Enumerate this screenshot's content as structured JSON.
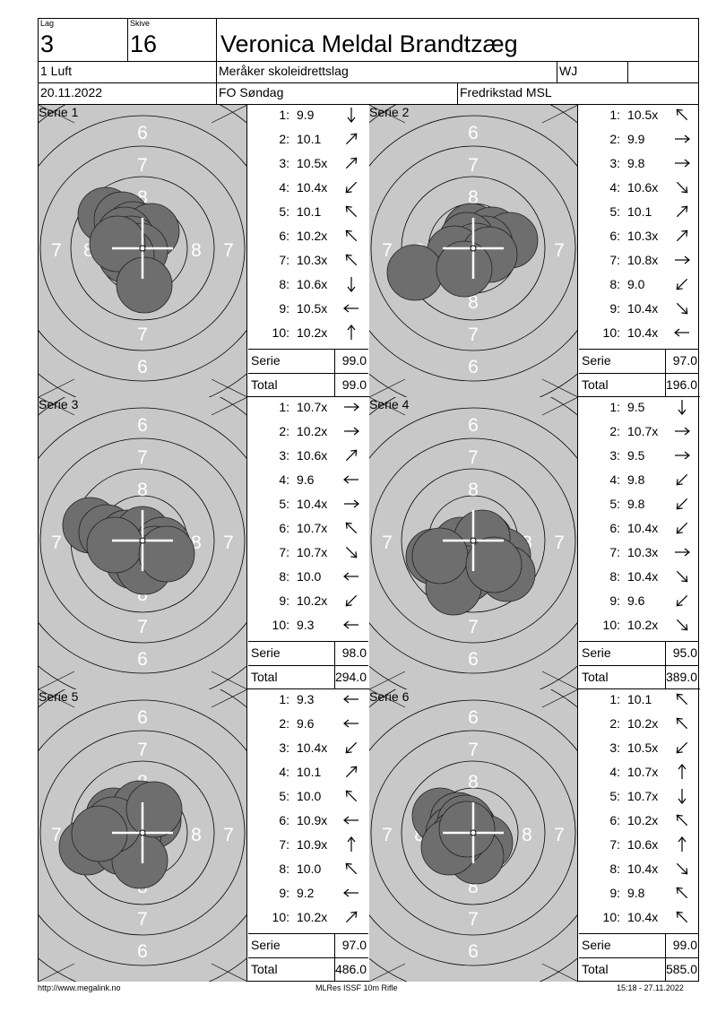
{
  "header": {
    "lag_label": "Lag",
    "lag": "3",
    "skive_label": "Skive",
    "skive": "16",
    "shooter_name": "Veronica Meldal Brandtzæg",
    "class": "1 Luft",
    "club": "Meråker skoleidrettslag",
    "code": "WJ",
    "date": "20.11.2022",
    "event": "FO Søndag",
    "venue": "Fredrikstad MSL"
  },
  "labels": {
    "serie": "Serie",
    "total": "Total"
  },
  "series": [
    {
      "label": "Serie 1",
      "serie_sum": "99.0",
      "total": "99.0",
      "shots": [
        {
          "n": "1:",
          "v": "9.9",
          "arrow": "down"
        },
        {
          "n": "2:",
          "v": "10.1",
          "arrow": "up-right"
        },
        {
          "n": "3:",
          "v": "10.5x",
          "arrow": "up-right"
        },
        {
          "n": "4:",
          "v": "10.4x",
          "arrow": "down-left"
        },
        {
          "n": "5:",
          "v": "10.1",
          "arrow": "up-left"
        },
        {
          "n": "6:",
          "v": "10.2x",
          "arrow": "up-left"
        },
        {
          "n": "7:",
          "v": "10.3x",
          "arrow": "up-left"
        },
        {
          "n": "8:",
          "v": "10.6x",
          "arrow": "down"
        },
        {
          "n": "9:",
          "v": "10.5x",
          "arrow": "left"
        },
        {
          "n": "10:",
          "v": "10.2x",
          "arrow": "up"
        }
      ]
    },
    {
      "label": "Serie 2",
      "serie_sum": "97.0",
      "total": "196.0",
      "shots": [
        {
          "n": "1:",
          "v": "10.5x",
          "arrow": "up-left"
        },
        {
          "n": "2:",
          "v": "9.9",
          "arrow": "right"
        },
        {
          "n": "3:",
          "v": "9.8",
          "arrow": "right"
        },
        {
          "n": "4:",
          "v": "10.6x",
          "arrow": "down-right"
        },
        {
          "n": "5:",
          "v": "10.1",
          "arrow": "up-right"
        },
        {
          "n": "6:",
          "v": "10.3x",
          "arrow": "up-right"
        },
        {
          "n": "7:",
          "v": "10.8x",
          "arrow": "right"
        },
        {
          "n": "8:",
          "v": "9.0",
          "arrow": "down-left"
        },
        {
          "n": "9:",
          "v": "10.4x",
          "arrow": "down-right"
        },
        {
          "n": "10:",
          "v": "10.4x",
          "arrow": "left"
        }
      ]
    },
    {
      "label": "Serie 3",
      "serie_sum": "98.0",
      "total": "294.0",
      "shots": [
        {
          "n": "1:",
          "v": "10.7x",
          "arrow": "right"
        },
        {
          "n": "2:",
          "v": "10.2x",
          "arrow": "right"
        },
        {
          "n": "3:",
          "v": "10.6x",
          "arrow": "up-right"
        },
        {
          "n": "4:",
          "v": "9.6",
          "arrow": "left"
        },
        {
          "n": "5:",
          "v": "10.4x",
          "arrow": "right"
        },
        {
          "n": "6:",
          "v": "10.7x",
          "arrow": "up-left"
        },
        {
          "n": "7:",
          "v": "10.7x",
          "arrow": "down-right"
        },
        {
          "n": "8:",
          "v": "10.0",
          "arrow": "left"
        },
        {
          "n": "9:",
          "v": "10.2x",
          "arrow": "down-left"
        },
        {
          "n": "10:",
          "v": "9.3",
          "arrow": "left"
        }
      ]
    },
    {
      "label": "Serie 4",
      "serie_sum": "95.0",
      "total": "389.0",
      "shots": [
        {
          "n": "1:",
          "v": "9.5",
          "arrow": "down"
        },
        {
          "n": "2:",
          "v": "10.7x",
          "arrow": "right"
        },
        {
          "n": "3:",
          "v": "9.5",
          "arrow": "right"
        },
        {
          "n": "4:",
          "v": "9.8",
          "arrow": "down-left"
        },
        {
          "n": "5:",
          "v": "9.8",
          "arrow": "down-left"
        },
        {
          "n": "6:",
          "v": "10.4x",
          "arrow": "down-left"
        },
        {
          "n": "7:",
          "v": "10.3x",
          "arrow": "right"
        },
        {
          "n": "8:",
          "v": "10.4x",
          "arrow": "down-right"
        },
        {
          "n": "9:",
          "v": "9.6",
          "arrow": "down-left"
        },
        {
          "n": "10:",
          "v": "10.2x",
          "arrow": "down-right"
        }
      ]
    },
    {
      "label": "Serie 5",
      "serie_sum": "97.0",
      "total": "486.0",
      "shots": [
        {
          "n": "1:",
          "v": "9.3",
          "arrow": "left"
        },
        {
          "n": "2:",
          "v": "9.6",
          "arrow": "left"
        },
        {
          "n": "3:",
          "v": "10.4x",
          "arrow": "down-left"
        },
        {
          "n": "4:",
          "v": "10.1",
          "arrow": "up-right"
        },
        {
          "n": "5:",
          "v": "10.0",
          "arrow": "up-left"
        },
        {
          "n": "6:",
          "v": "10.9x",
          "arrow": "left"
        },
        {
          "n": "7:",
          "v": "10.9x",
          "arrow": "up"
        },
        {
          "n": "8:",
          "v": "10.0",
          "arrow": "up-left"
        },
        {
          "n": "9:",
          "v": "9.2",
          "arrow": "left"
        },
        {
          "n": "10:",
          "v": "10.2x",
          "arrow": "up-right"
        }
      ]
    },
    {
      "label": "Serie 6",
      "serie_sum": "99.0",
      "total": "585.0",
      "shots": [
        {
          "n": "1:",
          "v": "10.1",
          "arrow": "up-left"
        },
        {
          "n": "2:",
          "v": "10.2x",
          "arrow": "up-left"
        },
        {
          "n": "3:",
          "v": "10.5x",
          "arrow": "down-left"
        },
        {
          "n": "4:",
          "v": "10.7x",
          "arrow": "up"
        },
        {
          "n": "5:",
          "v": "10.7x",
          "arrow": "down"
        },
        {
          "n": "6:",
          "v": "10.2x",
          "arrow": "up-left"
        },
        {
          "n": "7:",
          "v": "10.6x",
          "arrow": "up"
        },
        {
          "n": "8:",
          "v": "10.4x",
          "arrow": "down-right"
        },
        {
          "n": "9:",
          "v": "9.8",
          "arrow": "up-left"
        },
        {
          "n": "10:",
          "v": "10.4x",
          "arrow": "up-left"
        }
      ]
    }
  ],
  "ring_numbers": [
    "6",
    "7",
    "8"
  ],
  "colors": {
    "target_bg": "#c8c8c8",
    "shot_fill": "#6e6e6e",
    "crosshair": "#ffffff"
  },
  "footer": {
    "left": "http://www.megalink.no",
    "center": "MLRes ISSF 10m Rifle",
    "right": "15:18 - 27.11.2022"
  }
}
